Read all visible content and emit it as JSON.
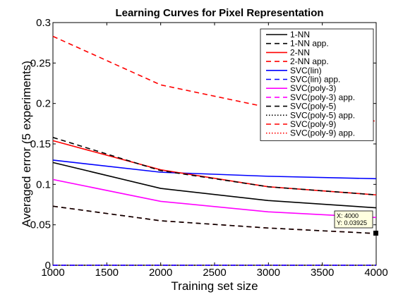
{
  "chart_data": {
    "type": "line",
    "title": "Learning Curves for Pixel Representation",
    "xlabel": "Training set size",
    "ylabel": "Averaged error (5 experiments)",
    "xlim": [
      1000,
      4000
    ],
    "ylim": [
      0,
      0.3
    ],
    "x": [
      1000,
      2000,
      3000,
      4000
    ],
    "xticks": [
      "1000",
      "1500",
      "2000",
      "2500",
      "3000",
      "3500",
      "4000"
    ],
    "xtick_values": [
      1000,
      1500,
      2000,
      2500,
      3000,
      3500,
      4000
    ],
    "yticks": [
      "0",
      "0.05",
      "0.1",
      "0.15",
      "0.2",
      "0.25",
      "0.3"
    ],
    "ytick_values": [
      0,
      0.05,
      0.1,
      0.15,
      0.2,
      0.25,
      0.3
    ],
    "grid": false,
    "legend_position": "top-right",
    "series": [
      {
        "name": "1-NN",
        "color": "#000000",
        "dash": "solid",
        "values": [
          0.127,
          0.095,
          0.08,
          0.071
        ]
      },
      {
        "name": "1-NN app.",
        "color": "#000000",
        "dash": "dashed",
        "values": [
          0.158,
          0.117,
          0.097,
          0.087
        ]
      },
      {
        "name": "2-NN",
        "color": "#ff0000",
        "dash": "solid",
        "values": [
          0.154,
          0.118,
          0.097,
          0.087
        ]
      },
      {
        "name": "2-NN app.",
        "color": "#ff0000",
        "dash": "dashed",
        "values": [
          0.283,
          0.223,
          0.195,
          0.178
        ]
      },
      {
        "name": "SVC(lin)",
        "color": "#0000ff",
        "dash": "solid",
        "values": [
          0.13,
          0.115,
          0.11,
          0.107
        ]
      },
      {
        "name": "SVC(lin) app.",
        "color": "#0000ff",
        "dash": "dashed",
        "values": [
          0,
          0,
          0,
          0
        ]
      },
      {
        "name": "SVC(poly-3)",
        "color": "#ff00ff",
        "dash": "solid",
        "values": [
          0.106,
          0.079,
          0.066,
          0.059
        ]
      },
      {
        "name": "SVC(poly-3) app.",
        "color": "#ff00ff",
        "dash": "dashed",
        "values": [
          0,
          0,
          0,
          0
        ]
      },
      {
        "name": "SVC(poly-5)",
        "color": "#000000",
        "dash": "dashed",
        "values": [
          0.073,
          0.055,
          0.046,
          0.03925
        ]
      },
      {
        "name": "SVC(poly-5) app.",
        "color": "#000000",
        "dash": "dotted",
        "values": [
          0,
          0,
          0,
          0
        ]
      },
      {
        "name": "SVC(poly-9)",
        "color": "#ff0000",
        "dash": "dashed",
        "values": [
          0.073,
          0.055,
          0.046,
          0.03925
        ]
      },
      {
        "name": "SVC(poly-9) app.",
        "color": "#ff0000",
        "dash": "dotted",
        "values": [
          0,
          0,
          0,
          0
        ]
      }
    ],
    "datatip": {
      "x": 4000,
      "y": 0.03925,
      "line1": "X: 4000",
      "line2": "Y: 0.03925"
    }
  }
}
